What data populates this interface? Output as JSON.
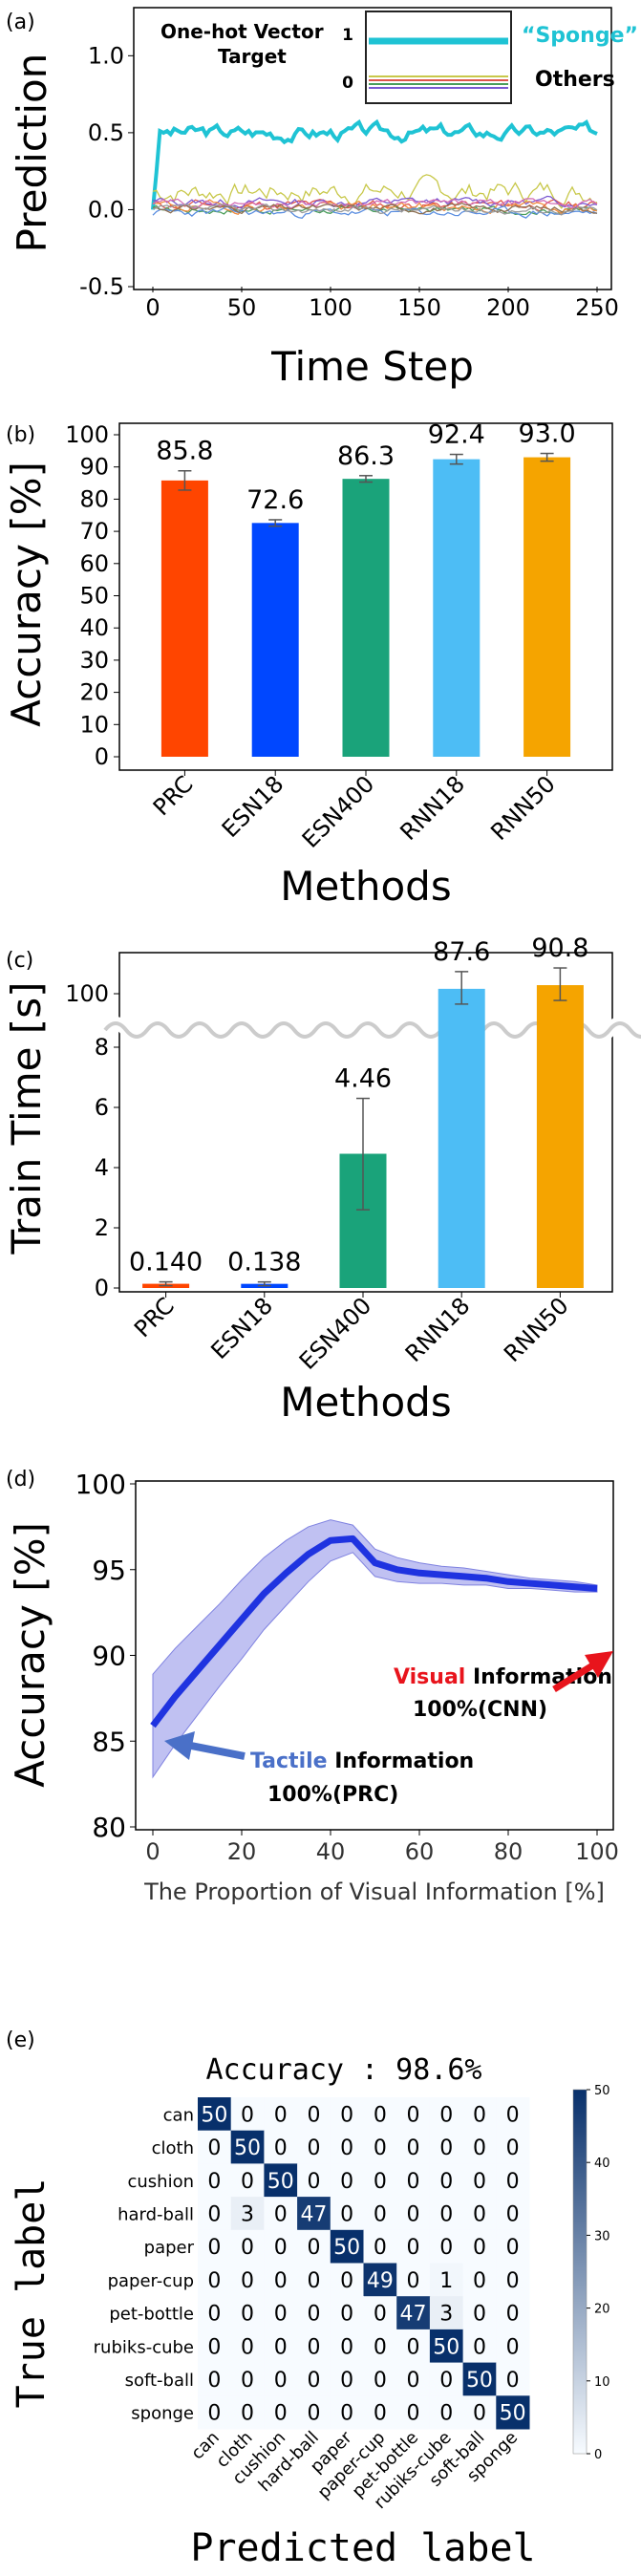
{
  "panels": {
    "a": "(a)",
    "b": "(b)",
    "c": "(c)",
    "d": "(d)",
    "e": "(e)"
  },
  "chart_data": [
    {
      "panel": "a",
      "type": "line",
      "xlabel": "Time Step",
      "ylabel": "Prediction",
      "xlim": [
        0,
        250
      ],
      "ylim": [
        -0.5,
        1.3
      ],
      "xticks": [
        "0",
        "50",
        "100",
        "150",
        "200",
        "250"
      ],
      "yticks": [
        "-0.5",
        "0.0",
        "0.5",
        "1.0"
      ],
      "legend": {
        "title_line1": "One-hot Vector",
        "title_line2": "Target",
        "one_label": "1",
        "zero_label": "0",
        "sponge_label": "“Sponge”",
        "others_label": "Others"
      },
      "series": [
        {
          "name": "“Sponge”",
          "color": "#1fc3d4",
          "base": 0.5,
          "amp": 0.12,
          "seed": 3
        },
        {
          "color": "#c8c84a",
          "base": 0.12,
          "amp": 0.18,
          "seed": 7
        },
        {
          "color": "#e0554a",
          "base": 0.03,
          "amp": 0.08,
          "seed": 11
        },
        {
          "color": "#7b5ad1",
          "base": 0.05,
          "amp": 0.07,
          "seed": 13
        },
        {
          "color": "#4a9d5a",
          "base": 0.0,
          "amp": 0.06,
          "seed": 17
        },
        {
          "color": "#f08a3c",
          "base": 0.02,
          "amp": 0.08,
          "seed": 19
        },
        {
          "color": "#5b8ee0",
          "base": -0.02,
          "amp": 0.07,
          "seed": 23
        },
        {
          "color": "#d36bb4",
          "base": 0.04,
          "amp": 0.06,
          "seed": 29
        },
        {
          "color": "#8d6e50",
          "base": 0.01,
          "amp": 0.06,
          "seed": 31
        },
        {
          "color": "#999999",
          "base": 0.0,
          "amp": 0.06,
          "seed": 37
        }
      ]
    },
    {
      "panel": "b",
      "type": "bar",
      "xlabel": "Methods",
      "ylabel": "Accuracy [%]",
      "ylim": [
        0,
        100
      ],
      "yticks": [
        "0",
        "10",
        "20",
        "30",
        "40",
        "50",
        "60",
        "70",
        "80",
        "90",
        "100"
      ],
      "categories": [
        "PRC",
        "ESN18",
        "ESN400",
        "RNN18",
        "RNN50"
      ],
      "values": [
        85.8,
        72.6,
        86.3,
        92.4,
        93.0
      ],
      "labels": [
        "85.8",
        "72.6",
        "86.3",
        "92.4",
        "93.0"
      ],
      "errors": [
        3.0,
        1.0,
        1.0,
        1.5,
        1.2
      ],
      "colors": [
        "#ff4500",
        "#0047ff",
        "#1aa37a",
        "#4dbdf5",
        "#f5a400"
      ]
    },
    {
      "panel": "c",
      "type": "bar",
      "xlabel": "Methods",
      "ylabel": "Train Time [s]",
      "yticks_lower": [
        "0",
        "2",
        "4",
        "6",
        "8"
      ],
      "yticks_upper": [
        "100"
      ],
      "categories": [
        "PRC",
        "ESN18",
        "ESN400",
        "RNN18",
        "RNN50"
      ],
      "values": [
        0.14,
        0.138,
        4.46,
        87.6,
        90.8
      ],
      "labels": [
        "0.140",
        "0.138",
        "4.46",
        "87.6",
        "90.8"
      ],
      "colors": [
        "#ff4500",
        "#0047ff",
        "#1aa37a",
        "#4dbdf5",
        "#f5a400"
      ]
    },
    {
      "panel": "d",
      "type": "line",
      "xlabel": "The Proportion of Visual Information [%]",
      "ylabel": "Accuracy [%]",
      "xlim": [
        0,
        100
      ],
      "ylim": [
        80,
        100
      ],
      "xticks": [
        "0",
        "20",
        "40",
        "60",
        "80",
        "100"
      ],
      "yticks": [
        "80",
        "85",
        "90",
        "95",
        "100"
      ],
      "x": [
        0,
        5,
        10,
        15,
        20,
        25,
        30,
        35,
        40,
        45,
        50,
        55,
        60,
        65,
        70,
        75,
        80,
        85,
        90,
        95,
        100
      ],
      "y": [
        85.9,
        87.6,
        89.1,
        90.6,
        92.1,
        93.6,
        94.8,
        95.9,
        96.7,
        96.8,
        95.4,
        95.0,
        94.8,
        94.7,
        94.6,
        94.5,
        94.3,
        94.2,
        94.1,
        94.0,
        93.9
      ],
      "band": [
        3.0,
        2.8,
        2.6,
        2.4,
        2.3,
        2.1,
        1.9,
        1.6,
        1.2,
        0.8,
        0.8,
        0.7,
        0.6,
        0.5,
        0.5,
        0.4,
        0.4,
        0.3,
        0.3,
        0.3,
        0.2
      ],
      "line_color": "#1f33e0",
      "band_color": "#8c8ee8",
      "annotations": {
        "visual_word": "Visual",
        "visual_rest": " Information",
        "visual_line2": "100%(CNN)",
        "tactile_word": "Tactile",
        "tactile_rest": " Information",
        "tactile_line2": "100%(PRC)",
        "visual_color": "#e8141c",
        "tactile_color": "#4a70c8"
      }
    },
    {
      "panel": "e",
      "type": "heatmap",
      "title": "Accuracy : 98.6%",
      "xlabel": "Predicted label",
      "ylabel": "True label",
      "labels": [
        "can",
        "cloth",
        "cushion",
        "hard-ball",
        "paper",
        "paper-cup",
        "pet-bottle",
        "rubiks-cube",
        "soft-ball",
        "sponge"
      ],
      "matrix": [
        [
          50,
          0,
          0,
          0,
          0,
          0,
          0,
          0,
          0,
          0
        ],
        [
          0,
          50,
          0,
          0,
          0,
          0,
          0,
          0,
          0,
          0
        ],
        [
          0,
          0,
          50,
          0,
          0,
          0,
          0,
          0,
          0,
          0
        ],
        [
          0,
          3,
          0,
          47,
          0,
          0,
          0,
          0,
          0,
          0
        ],
        [
          0,
          0,
          0,
          0,
          50,
          0,
          0,
          0,
          0,
          0
        ],
        [
          0,
          0,
          0,
          0,
          0,
          49,
          0,
          1,
          0,
          0
        ],
        [
          0,
          0,
          0,
          0,
          0,
          0,
          47,
          3,
          0,
          0
        ],
        [
          0,
          0,
          0,
          0,
          0,
          0,
          0,
          50,
          0,
          0
        ],
        [
          0,
          0,
          0,
          0,
          0,
          0,
          0,
          0,
          50,
          0
        ],
        [
          0,
          0,
          0,
          0,
          0,
          0,
          0,
          0,
          0,
          50
        ]
      ],
      "colorbar_ticks": [
        "0",
        "10",
        "20",
        "30",
        "40",
        "50"
      ],
      "cmap_low": "#f7fbff",
      "cmap_high": "#08306b"
    }
  ]
}
